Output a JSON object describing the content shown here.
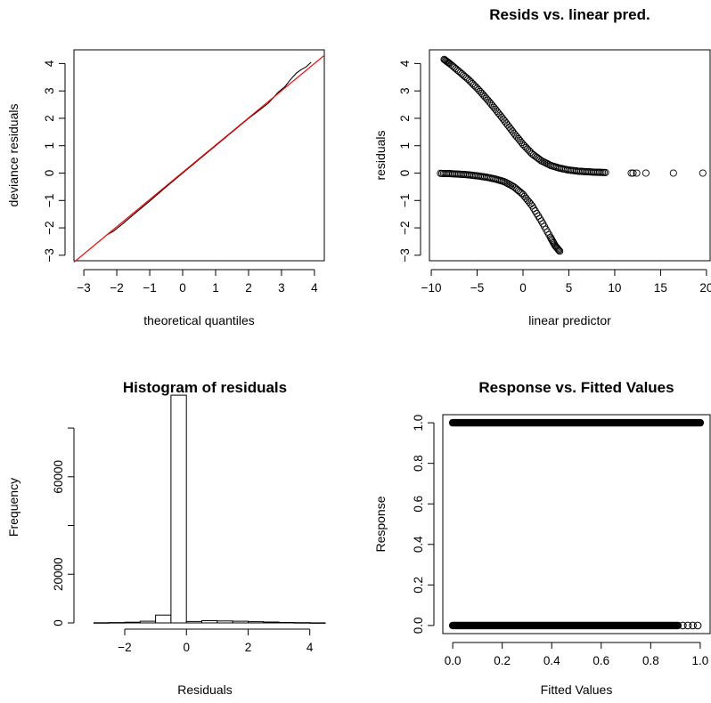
{
  "chart_data": [
    {
      "id": "qq",
      "type": "line",
      "title": "",
      "xlabel": "theoretical quantiles",
      "ylabel": "deviance residuals",
      "xlim": [
        -3.3,
        4.3
      ],
      "ylim": [
        -3.2,
        4.5
      ],
      "xticks": [
        -3,
        -2,
        -1,
        0,
        1,
        2,
        3,
        4
      ],
      "yticks": [
        -3,
        -2,
        -1,
        0,
        1,
        2,
        3,
        4
      ],
      "reference_line": {
        "color": "#ff0000",
        "x": [
          -3.3,
          4.3
        ],
        "y": [
          -3.25,
          4.3
        ]
      },
      "series": [
        {
          "color": "#000000",
          "x": [
            -2.3,
            -2.1,
            -1.8,
            -1.5,
            -1.0,
            -0.5,
            0.0,
            0.5,
            1.0,
            1.5,
            2.0,
            2.3,
            2.6,
            2.9,
            3.1,
            3.3,
            3.45,
            3.6,
            3.75,
            3.9
          ],
          "y": [
            -2.25,
            -2.12,
            -1.83,
            -1.52,
            -1.02,
            -0.5,
            0.0,
            0.5,
            1.0,
            1.5,
            2.0,
            2.27,
            2.55,
            2.95,
            3.15,
            3.45,
            3.65,
            3.78,
            3.88,
            4.05
          ]
        }
      ]
    },
    {
      "id": "resid",
      "type": "scatter",
      "title": "Resids vs. linear pred.",
      "xlabel": "linear predictor",
      "ylabel": "residuals",
      "xlim": [
        -10.2,
        20.4
      ],
      "ylim": [
        -3.2,
        4.5
      ],
      "xticks": [
        -10,
        -5,
        0,
        5,
        10,
        15,
        20
      ],
      "yticks": [
        -3,
        -2,
        -1,
        0,
        1,
        2,
        3,
        4
      ],
      "marker": "open-circle",
      "upper_branch": {
        "x": [
          -8.6,
          -8.0,
          -7.0,
          -6.0,
          -5.0,
          -4.0,
          -3.0,
          -2.0,
          -1.0,
          0.0,
          1.0,
          2.0,
          3.0,
          4.0,
          5.0,
          6.0,
          7.0,
          8.0,
          9.0
        ],
        "y": [
          4.15,
          4.0,
          3.72,
          3.43,
          3.1,
          2.73,
          2.33,
          1.9,
          1.46,
          1.05,
          0.7,
          0.45,
          0.28,
          0.18,
          0.11,
          0.07,
          0.05,
          0.03,
          0.02
        ]
      },
      "lower_branch": {
        "x": [
          -9.0,
          -8.0,
          -7.0,
          -6.0,
          -5.0,
          -4.0,
          -3.0,
          -2.0,
          -1.0,
          0.0,
          1.0,
          2.0,
          3.0,
          3.5,
          4.0
        ],
        "y": [
          -0.01,
          -0.02,
          -0.04,
          -0.06,
          -0.1,
          -0.15,
          -0.22,
          -0.32,
          -0.5,
          -0.78,
          -1.2,
          -1.75,
          -2.35,
          -2.65,
          -2.85
        ]
      },
      "isolated_points": {
        "x": [
          11.8,
          12.0,
          12.4,
          13.4,
          16.4,
          19.6
        ],
        "y": [
          0,
          0,
          0,
          0,
          0,
          0
        ]
      }
    },
    {
      "id": "hist",
      "type": "bar",
      "title": "Histogram of residuals",
      "xlabel": "Residuals",
      "ylabel": "Frequency",
      "xlim": [
        -3.3,
        4.5
      ],
      "ylim": [
        0,
        95000
      ],
      "xticks": [
        -2,
        0,
        2,
        4
      ],
      "yticks": [
        0,
        20000,
        40000,
        60000,
        80000
      ],
      "ytick_labels_shown": [
        "0",
        "20000",
        "60000"
      ],
      "bins": [
        {
          "from": -3.0,
          "to": -2.5,
          "count": 80
        },
        {
          "from": -2.5,
          "to": -2.0,
          "count": 150
        },
        {
          "from": -2.0,
          "to": -1.5,
          "count": 300
        },
        {
          "from": -1.5,
          "to": -1.0,
          "count": 700
        },
        {
          "from": -1.0,
          "to": -0.5,
          "count": 3200
        },
        {
          "from": -0.5,
          "to": 0.0,
          "count": 93500
        },
        {
          "from": 0.0,
          "to": 0.5,
          "count": 600
        },
        {
          "from": 0.5,
          "to": 1.0,
          "count": 900
        },
        {
          "from": 1.0,
          "to": 1.5,
          "count": 800
        },
        {
          "from": 1.5,
          "to": 2.0,
          "count": 700
        },
        {
          "from": 2.0,
          "to": 2.5,
          "count": 500
        },
        {
          "from": 2.5,
          "to": 3.0,
          "count": 350
        },
        {
          "from": 3.0,
          "to": 3.5,
          "count": 200
        },
        {
          "from": 3.5,
          "to": 4.0,
          "count": 100
        },
        {
          "from": 4.0,
          "to": 4.5,
          "count": 40
        }
      ]
    },
    {
      "id": "fitted",
      "type": "scatter",
      "title": "Response vs. Fitted Values",
      "xlabel": "Fitted Values",
      "ylabel": "Response",
      "xlim": [
        -0.04,
        1.04
      ],
      "ylim": [
        -0.04,
        1.04
      ],
      "xticks": [
        0.0,
        0.2,
        0.4,
        0.6,
        0.8,
        1.0
      ],
      "yticks": [
        0.0,
        0.2,
        0.4,
        0.6,
        0.8,
        1.0
      ],
      "xtick_labels": [
        "0.0",
        "0.2",
        "0.4",
        "0.6",
        "0.8",
        "1.0"
      ],
      "ytick_labels": [
        "0.0",
        "0.2",
        "0.4",
        "0.6",
        "0.8",
        "1.0"
      ],
      "band_y1": {
        "y": 1,
        "xmin": 0.0,
        "xmax": 1.0
      },
      "band_y0": {
        "y": 0,
        "xmin": 0.0,
        "xmax": 0.91
      },
      "sparse_y0": {
        "x": [
          0.93,
          0.95,
          0.97,
          0.99
        ],
        "y": [
          0,
          0,
          0,
          0
        ]
      }
    }
  ]
}
